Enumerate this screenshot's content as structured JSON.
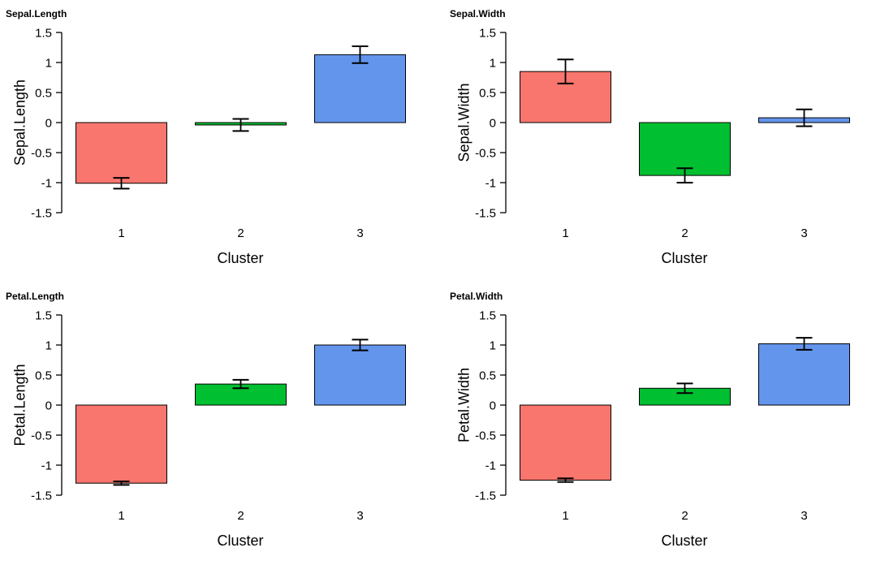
{
  "canvas": {
    "background": "#ffffff"
  },
  "chart_data": [
    {
      "type": "bar",
      "title": "Sepal.Length",
      "ylabel": "Sepal.Length",
      "xlabel": "Cluster",
      "categories": [
        "1",
        "2",
        "3"
      ],
      "values": [
        -1.01,
        -0.04,
        1.13
      ],
      "errors": [
        0.09,
        0.1,
        0.14
      ],
      "colors": [
        "#F8766D",
        "#00BF30",
        "#6495ED"
      ],
      "bar_border_color": "#000000",
      "ylim": [
        -1.5,
        1.5
      ],
      "yticks": [
        -1.5,
        -1,
        -0.5,
        0,
        0.5,
        1,
        1.5
      ],
      "grid": false,
      "legend": "none"
    },
    {
      "type": "bar",
      "title": "Sepal.Width",
      "ylabel": "Sepal.Width",
      "xlabel": "Cluster",
      "categories": [
        "1",
        "2",
        "3"
      ],
      "values": [
        0.85,
        -0.88,
        0.08
      ],
      "errors": [
        0.2,
        0.12,
        0.14
      ],
      "colors": [
        "#F8766D",
        "#00BF30",
        "#6495ED"
      ],
      "bar_border_color": "#000000",
      "ylim": [
        -1.5,
        1.5
      ],
      "yticks": [
        -1.5,
        -1,
        -0.5,
        0,
        0.5,
        1,
        1.5
      ],
      "grid": false,
      "legend": "none"
    },
    {
      "type": "bar",
      "title": "Petal.Length",
      "ylabel": "Petal.Length",
      "xlabel": "Cluster",
      "categories": [
        "1",
        "2",
        "3"
      ],
      "values": [
        -1.3,
        0.35,
        1.0
      ],
      "errors": [
        0.03,
        0.07,
        0.09
      ],
      "colors": [
        "#F8766D",
        "#00BF30",
        "#6495ED"
      ],
      "bar_border_color": "#000000",
      "ylim": [
        -1.5,
        1.5
      ],
      "yticks": [
        -1.5,
        -1,
        -0.5,
        0,
        0.5,
        1,
        1.5
      ],
      "grid": false,
      "legend": "none"
    },
    {
      "type": "bar",
      "title": "Petal.Width",
      "ylabel": "Petal.Width",
      "xlabel": "Cluster",
      "categories": [
        "1",
        "2",
        "3"
      ],
      "values": [
        -1.25,
        0.28,
        1.02
      ],
      "errors": [
        0.03,
        0.08,
        0.1
      ],
      "colors": [
        "#F8766D",
        "#00BF30",
        "#6495ED"
      ],
      "bar_border_color": "#000000",
      "ylim": [
        -1.5,
        1.5
      ],
      "yticks": [
        -1.5,
        -1,
        -0.5,
        0,
        0.5,
        1,
        1.5
      ],
      "grid": false,
      "legend": "none"
    }
  ]
}
